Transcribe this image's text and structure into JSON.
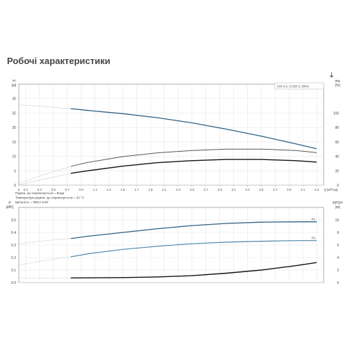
{
  "page": {
    "title": "Робочі характеристики",
    "download_icon": "download-arrow-icon",
    "download_glyph": "⤓"
  },
  "chart_data": [
    {
      "type": "line",
      "title": "",
      "legend": "CM 3-3, 1*230 V, 50Hz",
      "legend_position": "top-right",
      "xlabel": "Q [м³/год]",
      "ylabel_left": "H [м]",
      "ylabel_right": "eta [%]",
      "xlim": [
        0,
        4.4
      ],
      "ylim_left": [
        0,
        35
      ],
      "ylim_right": [
        0,
        140
      ],
      "x_ticks": [
        "0",
        "0.1",
        "0.3",
        "0.5",
        "0.7",
        "0.9",
        "1.1",
        "1.3",
        "1.5",
        "1.7",
        "1.9",
        "2.1",
        "2.3",
        "2.5",
        "2.7",
        "2.9",
        "3.1",
        "3.3",
        "3.5",
        "3.7",
        "3.9",
        "4.1",
        "4.3"
      ],
      "y_ticks_left": [
        "0",
        "5",
        "10",
        "15",
        "20",
        "25",
        "30"
      ],
      "y_ticks_right": [
        "0",
        "20",
        "40",
        "60",
        "80",
        "100"
      ],
      "grid": true,
      "notes": [
        "Рідина, що перекачується = Вода",
        "Температура рідини, що перекачується = 20 °C",
        "Щільність = 998.2 кг/м³"
      ],
      "series": [
        {
          "axis": "left",
          "color": "#2d5f82",
          "width": 1.3,
          "x": [
            0,
            0.3,
            0.6,
            0.8,
            1.0,
            1.5,
            2.0,
            2.5,
            3.0,
            3.5,
            4.0,
            4.3
          ],
          "y": [
            27.8,
            27.4,
            26.8,
            26.4,
            25.9,
            24.8,
            23.4,
            21.6,
            19.4,
            17.0,
            14.3,
            12.6
          ],
          "dashed_until": 0.75
        },
        {
          "axis": "left",
          "color": "#555555",
          "width": 1.0,
          "x": [
            0,
            0.2,
            0.5,
            0.8,
            1.0,
            1.5,
            2.0,
            2.5,
            3.0,
            3.5,
            4.0,
            4.3
          ],
          "y": [
            0.5,
            2.3,
            4.7,
            6.8,
            7.9,
            9.9,
            11.2,
            12.0,
            12.5,
            12.5,
            12.0,
            11.3
          ],
          "dashed_until": 0.75
        },
        {
          "axis": "left",
          "color": "#111111",
          "width": 1.4,
          "x": [
            0,
            0.2,
            0.5,
            0.8,
            1.0,
            1.5,
            2.0,
            2.5,
            3.0,
            3.5,
            4.0,
            4.3
          ],
          "y": [
            0.0,
            1.2,
            2.8,
            4.3,
            5.0,
            6.6,
            7.8,
            8.5,
            8.9,
            8.9,
            8.5,
            8.0
          ],
          "dashed_until": 0.75
        }
      ]
    },
    {
      "type": "line",
      "title": "",
      "xlabel": "",
      "ylabel_left": "P [кВт]",
      "ylabel_right": "NPSH [м]",
      "xlim": [
        0,
        4.4
      ],
      "ylim_left": [
        0,
        0.6
      ],
      "ylim_right": [
        0,
        12
      ],
      "y_ticks_left": [
        "0.0",
        "0.1",
        "0.2",
        "0.3",
        "0.4",
        "0.5"
      ],
      "y_ticks_right": [
        "0",
        "2",
        "4",
        "6",
        "8",
        "10"
      ],
      "grid": true,
      "series": [
        {
          "name": "P1",
          "axis": "left",
          "color": "#2d5f82",
          "width": 1.3,
          "x": [
            0,
            0.3,
            0.6,
            0.8,
            1.0,
            1.5,
            2.0,
            2.5,
            3.0,
            3.5,
            4.0,
            4.3
          ],
          "y": [
            0.31,
            0.33,
            0.345,
            0.355,
            0.37,
            0.4,
            0.43,
            0.455,
            0.472,
            0.482,
            0.485,
            0.485
          ],
          "dashed_until": 0.75
        },
        {
          "name": "P2",
          "axis": "left",
          "color": "#4f86ab",
          "width": 1.2,
          "x": [
            0,
            0.3,
            0.6,
            0.8,
            1.0,
            1.5,
            2.0,
            2.5,
            3.0,
            3.5,
            4.0,
            4.3
          ],
          "y": [
            0.14,
            0.17,
            0.195,
            0.21,
            0.23,
            0.265,
            0.29,
            0.31,
            0.323,
            0.33,
            0.335,
            0.335
          ],
          "dashed_until": 0.75
        },
        {
          "axis": "right",
          "color": "#111111",
          "width": 1.4,
          "x": [
            0,
            0.5,
            0.8,
            1.0,
            1.5,
            2.0,
            2.5,
            3.0,
            3.5,
            4.0,
            4.3
          ],
          "y": [
            0.75,
            0.75,
            0.75,
            0.76,
            0.8,
            0.9,
            1.1,
            1.5,
            2.0,
            2.7,
            3.2
          ],
          "dashed_until": 0.75
        }
      ]
    }
  ]
}
